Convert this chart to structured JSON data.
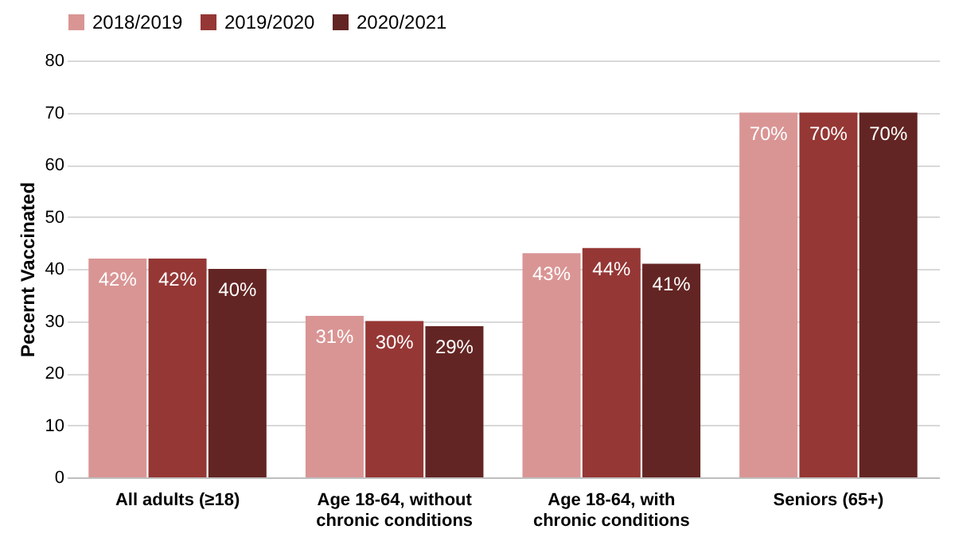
{
  "chart_data": {
    "type": "bar",
    "ylabel": "Pecernt Vaccinated",
    "categories": [
      "All adults (≥18)",
      "Age 18-64, without chronic conditions",
      "Age 18-64, with chronic conditions",
      "Seniors (65+)"
    ],
    "series": [
      {
        "name": "2018/2019",
        "color": "#d99594",
        "values": [
          42,
          31,
          43,
          70
        ],
        "value_labels": [
          "42%",
          "31%",
          "43%",
          "70%"
        ]
      },
      {
        "name": "2019/2020",
        "color": "#953735",
        "values": [
          42,
          30,
          44,
          70
        ],
        "value_labels": [
          "42%",
          "30%",
          "44%",
          "70%"
        ]
      },
      {
        "name": "2020/2021",
        "color": "#632523",
        "values": [
          40,
          29,
          41,
          70
        ],
        "value_labels": [
          "40%",
          "29%",
          "41%",
          "70%"
        ]
      }
    ],
    "ylim": [
      0,
      80
    ],
    "yticks": [
      0,
      10,
      20,
      30,
      40,
      50,
      60,
      70,
      80
    ],
    "grid": "y",
    "legend": "top"
  }
}
